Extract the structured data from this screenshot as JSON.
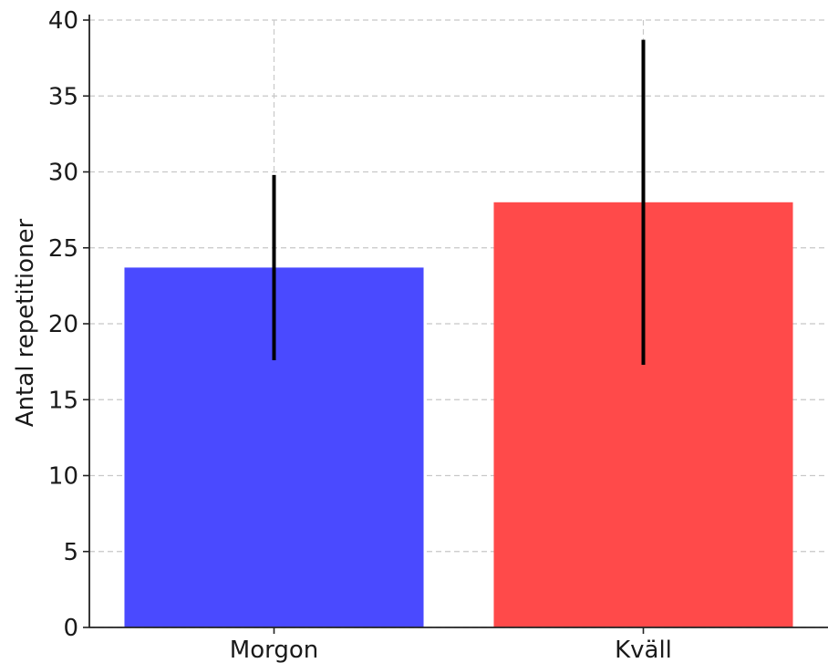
{
  "chart_data": {
    "type": "bar",
    "title": "",
    "xlabel": "",
    "ylabel": "Antal repetitioner",
    "categories": [
      "Morgon",
      "Kväll"
    ],
    "values": [
      23.7,
      28.0
    ],
    "errors": [
      6.1,
      10.7
    ],
    "colors": [
      "#4a4aff",
      "#ff4a4a"
    ],
    "error_color": "#000000",
    "ylim": [
      0,
      40
    ],
    "yticks": [
      0,
      5,
      10,
      15,
      20,
      25,
      30,
      35,
      40
    ],
    "grid": true
  }
}
